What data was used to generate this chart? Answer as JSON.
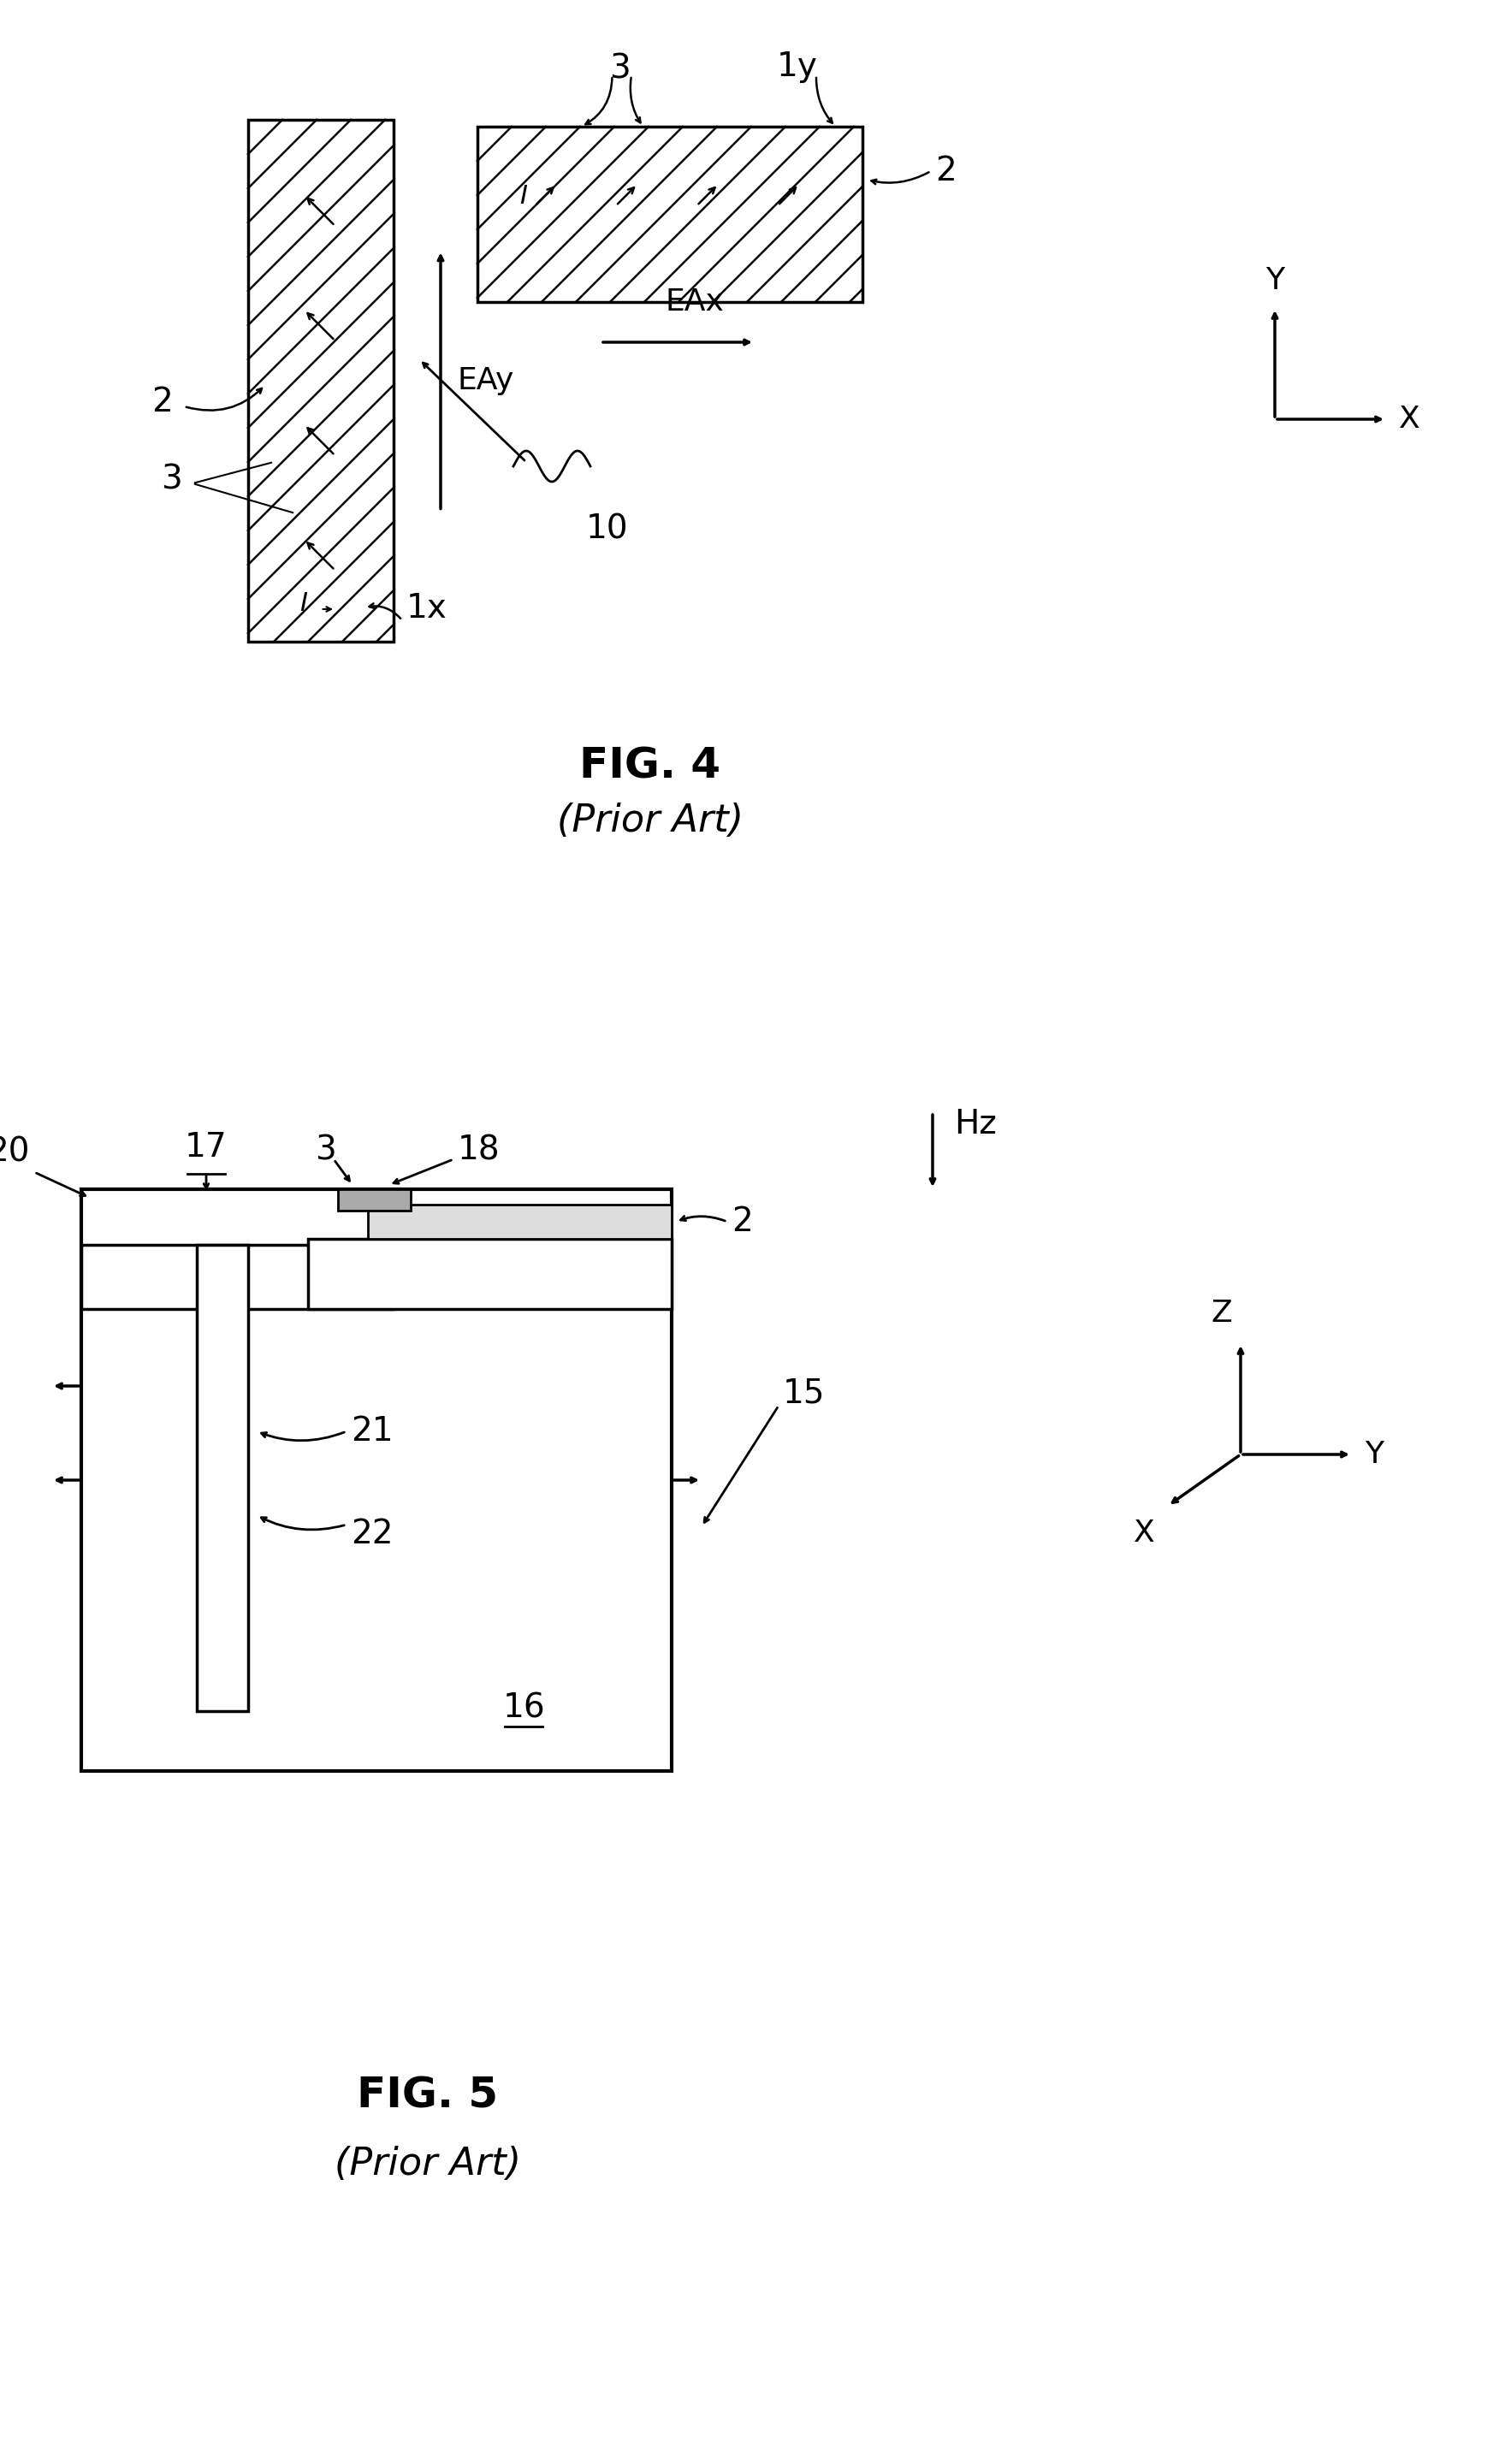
{
  "fig_width": 17.59,
  "fig_height": 28.8,
  "bg_color": "#ffffff",
  "fig4_title": "FIG. 4",
  "fig4_subtitle": "(Prior Art)",
  "fig5_title": "FIG. 5",
  "fig5_subtitle": "(Prior Art)"
}
